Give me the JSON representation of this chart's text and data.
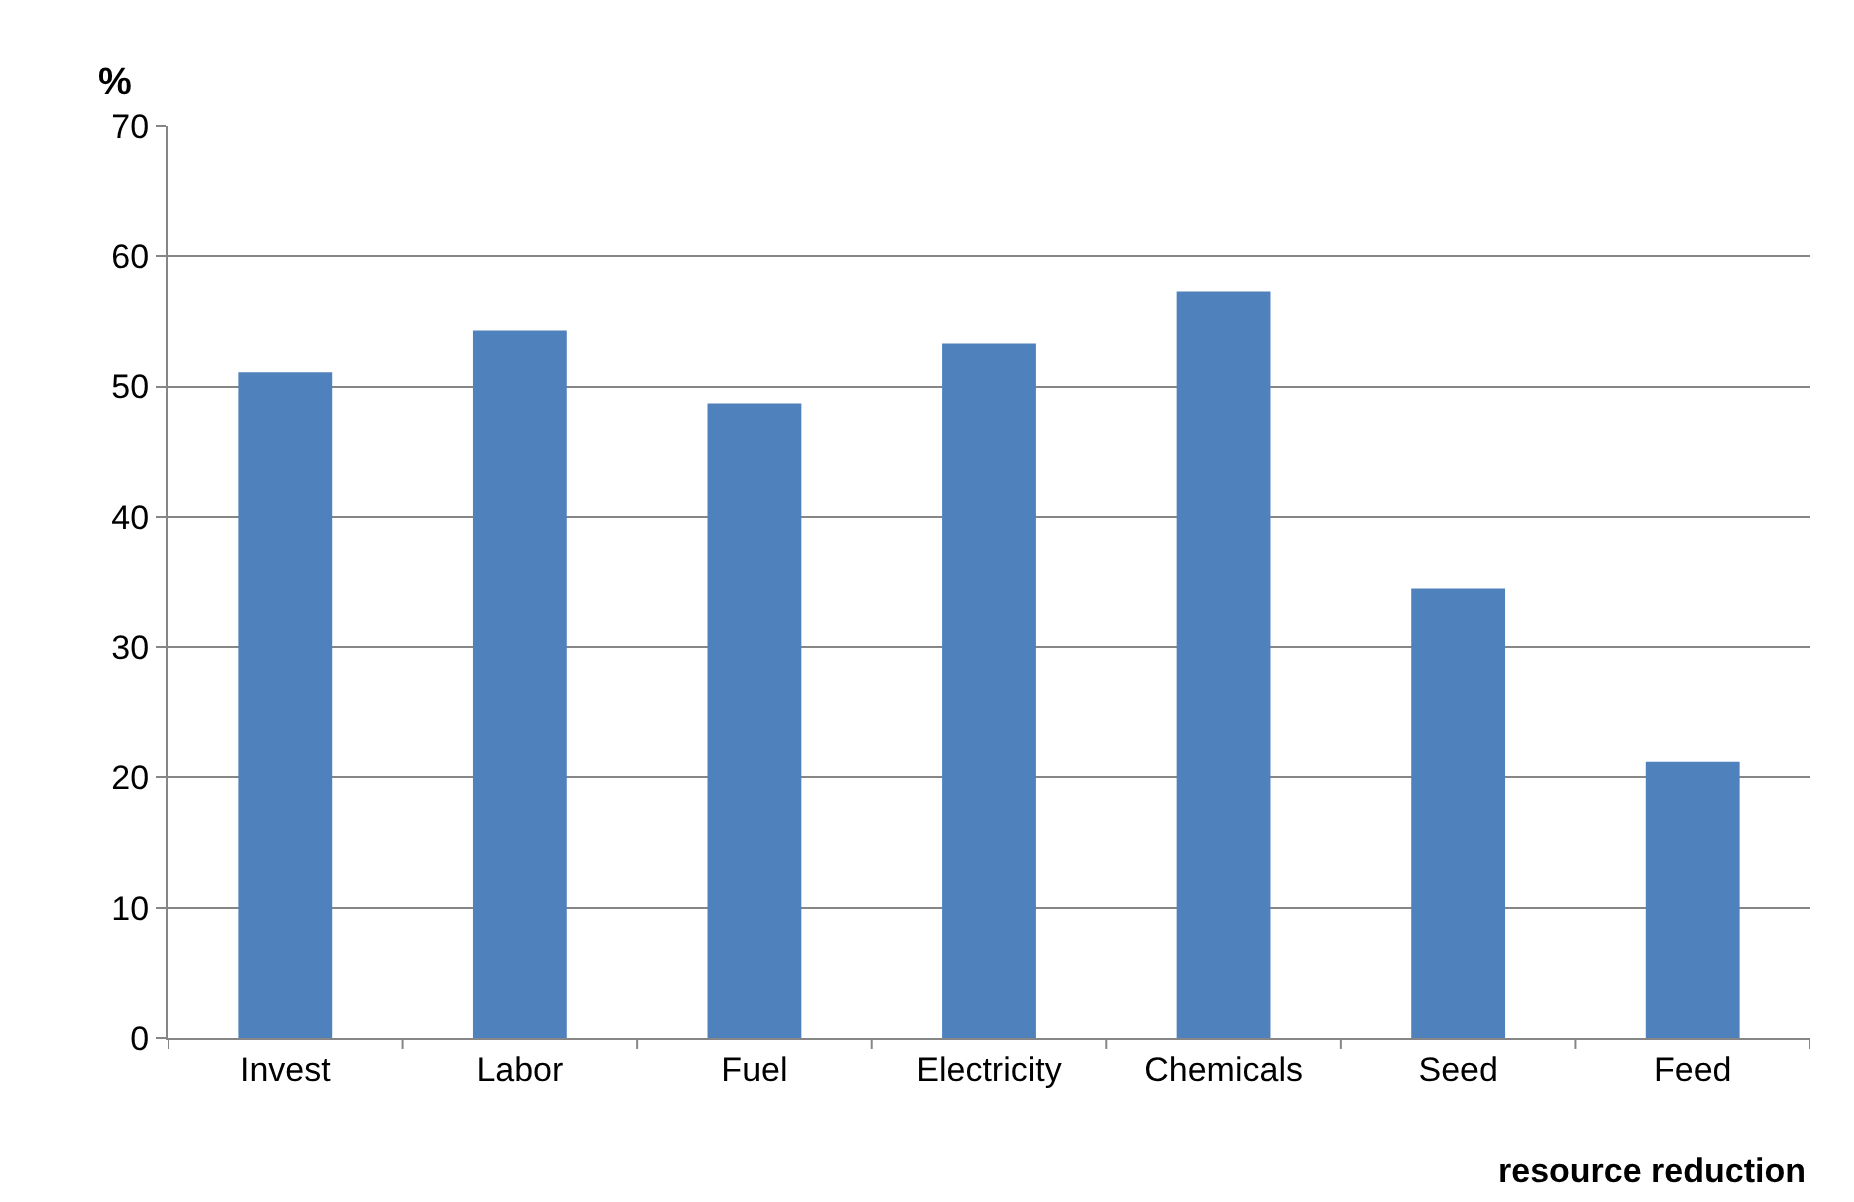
{
  "chart_data": {
    "type": "bar",
    "xlabel": "resource reduction",
    "ylabel": "%",
    "categories": [
      "Invest",
      "Labor",
      "Fuel",
      "Electricity",
      "Chemicals",
      "Seed",
      "Feed"
    ],
    "values": [
      51.1,
      54.3,
      48.7,
      53.3,
      57.3,
      34.5,
      21.2
    ],
    "color": "#4f81bd",
    "ylim": [
      0,
      70
    ],
    "yticks": [
      0,
      10,
      20,
      30,
      40,
      50,
      60,
      70
    ],
    "grid": "y"
  }
}
